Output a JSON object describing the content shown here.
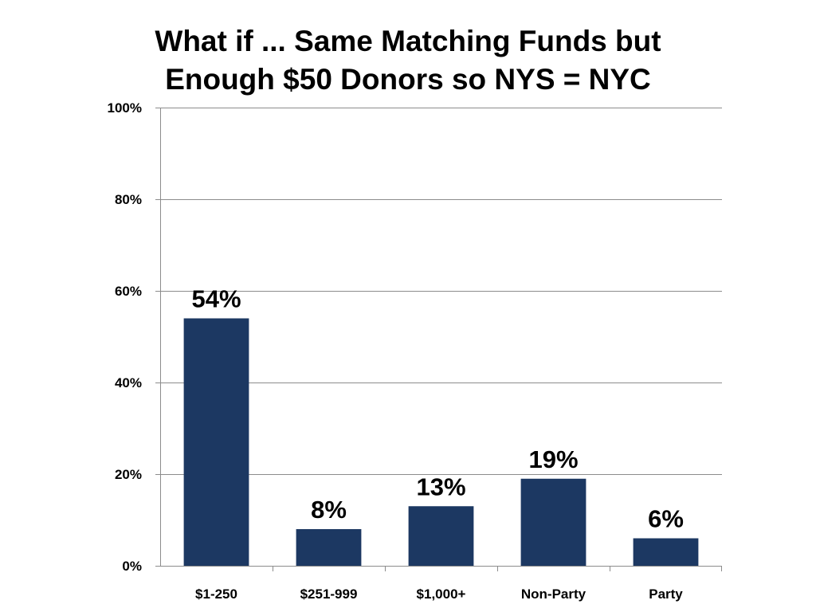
{
  "chart_data": {
    "type": "bar",
    "title_lines": [
      "What if ... Same Matching Funds but",
      "Enough $50 Donors so NYS = NYC"
    ],
    "categories": [
      "$1-250",
      "$251-999",
      "$1,000+",
      "Non-Party",
      "Party"
    ],
    "values": [
      54,
      8,
      13,
      19,
      6
    ],
    "data_labels": [
      "54%",
      "8%",
      "13%",
      "19%",
      "6%"
    ],
    "ylim": [
      0,
      100
    ],
    "yticks": [
      0,
      20,
      40,
      60,
      80,
      100
    ],
    "ytick_labels": [
      "0%",
      "20%",
      "40%",
      "60%",
      "80%",
      "100%"
    ],
    "xlabel": "",
    "ylabel": "",
    "grid": true,
    "legend": "none",
    "colors": {
      "bar": "#1c3862",
      "grid": "#8c8c8c",
      "axis": "#8c8c8c"
    }
  }
}
